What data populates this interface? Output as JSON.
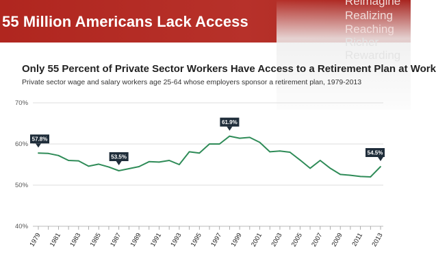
{
  "banner": {
    "title": "55 Million Americans Lack Access",
    "side_words": [
      "Reimagine",
      "Realizing",
      "Reaching",
      "Richer",
      "Rewarding"
    ]
  },
  "chart_data": {
    "type": "line",
    "title": "Only 55 Percent of Private Sector Workers Have Access to a Retirement Plan at Work",
    "subtitle": "Private sector wage and salary workers age 25-64 whose employers sponsor a retirement plan, 1979-2013",
    "x": [
      1979,
      1980,
      1981,
      1982,
      1983,
      1984,
      1985,
      1986,
      1987,
      1988,
      1989,
      1990,
      1991,
      1992,
      1993,
      1994,
      1995,
      1996,
      1997,
      1998,
      1999,
      2000,
      2001,
      2002,
      2003,
      2004,
      2005,
      2006,
      2007,
      2008,
      2009,
      2010,
      2011,
      2012,
      2013
    ],
    "series": [
      {
        "values": [
          57.8,
          57.7,
          57.2,
          56.0,
          55.9,
          54.6,
          55.1,
          54.4,
          53.5,
          54.0,
          54.5,
          55.7,
          55.6,
          56.0,
          55.0,
          58.1,
          57.8,
          60.0,
          60.0,
          61.9,
          61.4,
          61.6,
          60.4,
          58.1,
          58.3,
          58.0,
          56.1,
          54.1,
          56.0,
          54.1,
          52.6,
          52.4,
          52.1,
          52.0,
          54.5
        ]
      }
    ],
    "x_ticks": [
      "1979",
      "1981",
      "1983",
      "1985",
      "1987",
      "1989",
      "1991",
      "1993",
      "1995",
      "1997",
      "1999",
      "2001",
      "2003",
      "2005",
      "2007",
      "2009",
      "2011",
      "2013"
    ],
    "y_ticks": [
      "40%",
      "50%",
      "60%",
      "70%"
    ],
    "ylim": [
      40,
      70
    ],
    "xlim": [
      1979,
      2013
    ],
    "grid": "horizontal",
    "line_color": "#2e8b57",
    "annotations": [
      {
        "x": 1979,
        "y": 57.8,
        "text": "57.8%"
      },
      {
        "x": 1987,
        "y": 53.5,
        "text": "53.5%"
      },
      {
        "x": 1998,
        "y": 61.9,
        "text": "61.9%"
      },
      {
        "x": 2013,
        "y": 54.5,
        "text": "54.5%"
      }
    ]
  }
}
